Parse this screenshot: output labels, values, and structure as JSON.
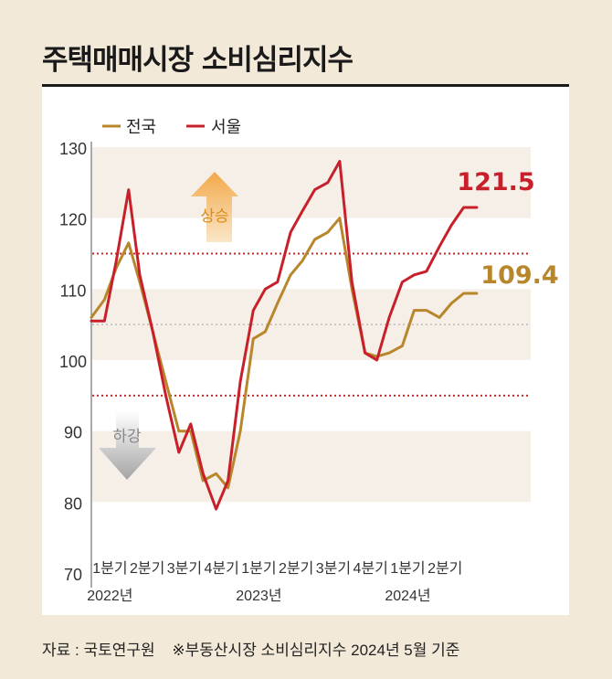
{
  "header": {
    "title": "주택매매시장 소비심리지수"
  },
  "footer": {
    "source": "자료 : 국토연구원",
    "note": "※부동산시장 소비심리지수 2024년 5월 기준"
  },
  "colors": {
    "national": "#b8862b",
    "seoul": "#c8202a",
    "band": "#f5efe7",
    "dotted_red": "#cc2a2a",
    "dotted_grey": "#bbbbbb",
    "up_arrow": "#f2a94a",
    "down_arrow": "#aaaaaa"
  },
  "chart_data": {
    "type": "line",
    "title": "주택매매시장 소비심리지수",
    "ylim": [
      70,
      130
    ],
    "yticks": [
      70,
      80,
      90,
      100,
      110,
      120,
      130
    ],
    "x_range": [
      0,
      11.8
    ],
    "xticks": [
      {
        "pos": 0.5,
        "label": "1분기"
      },
      {
        "pos": 1.5,
        "label": "2분기"
      },
      {
        "pos": 2.5,
        "label": "3분기"
      },
      {
        "pos": 3.5,
        "label": "4분기"
      },
      {
        "pos": 4.5,
        "label": "1분기"
      },
      {
        "pos": 5.5,
        "label": "2분기"
      },
      {
        "pos": 6.5,
        "label": "3분기"
      },
      {
        "pos": 7.5,
        "label": "4분기"
      },
      {
        "pos": 8.5,
        "label": "1분기"
      },
      {
        "pos": 9.5,
        "label": "2분기"
      }
    ],
    "year_labels": [
      {
        "pos": 0.5,
        "label": "2022년"
      },
      {
        "pos": 4.5,
        "label": "2023년"
      },
      {
        "pos": 8.5,
        "label": "2024년"
      }
    ],
    "bands": [
      [
        80,
        90
      ],
      [
        100,
        110
      ],
      [
        120,
        130
      ]
    ],
    "reference_lines": [
      {
        "y": 115,
        "style": "red-dotted"
      },
      {
        "y": 105,
        "style": "grey-dotted"
      },
      {
        "y": 95,
        "style": "red-dotted"
      }
    ],
    "legend": {
      "position": "top-left",
      "items": [
        "전국",
        "서울"
      ]
    },
    "series": [
      {
        "name": "전국",
        "end_label": "109.4",
        "x": [
          0,
          0.35,
          0.67,
          1.0,
          1.3,
          1.65,
          2.0,
          2.35,
          2.67,
          3.0,
          3.35,
          3.67,
          4.0,
          4.35,
          4.67,
          5.0,
          5.35,
          5.67,
          6.0,
          6.35,
          6.67,
          7.0,
          7.35,
          7.67,
          8.0,
          8.35,
          8.67,
          9.0,
          9.35,
          9.67,
          10.0,
          10.35
        ],
        "values": [
          106,
          108.5,
          113,
          116.5,
          111,
          104,
          97,
          90,
          90,
          83,
          84,
          82,
          90,
          103,
          104,
          108,
          112,
          114,
          117,
          118,
          120,
          110,
          101,
          100.5,
          101,
          102,
          107,
          107,
          106,
          108,
          109.4,
          109.4
        ]
      },
      {
        "name": "서울",
        "end_label": "121.5",
        "x": [
          0,
          0.35,
          0.67,
          1.0,
          1.3,
          1.65,
          2.0,
          2.35,
          2.67,
          3.0,
          3.35,
          3.67,
          4.0,
          4.35,
          4.67,
          5.0,
          5.35,
          5.67,
          6.0,
          6.35,
          6.67,
          7.0,
          7.35,
          7.67,
          8.0,
          8.35,
          8.67,
          9.0,
          9.35,
          9.67,
          10.0,
          10.35
        ],
        "values": [
          105.5,
          105.5,
          114,
          124,
          112,
          104,
          95,
          87,
          91,
          84,
          79,
          83,
          97,
          107,
          110,
          111,
          118,
          121,
          124,
          125,
          128,
          111,
          101,
          100,
          106,
          111,
          112,
          112.5,
          116,
          119,
          121.5,
          121.5
        ]
      }
    ],
    "annotations": [
      {
        "text": "상승",
        "kind": "up-arrow"
      },
      {
        "text": "하강",
        "kind": "down-arrow"
      }
    ]
  }
}
